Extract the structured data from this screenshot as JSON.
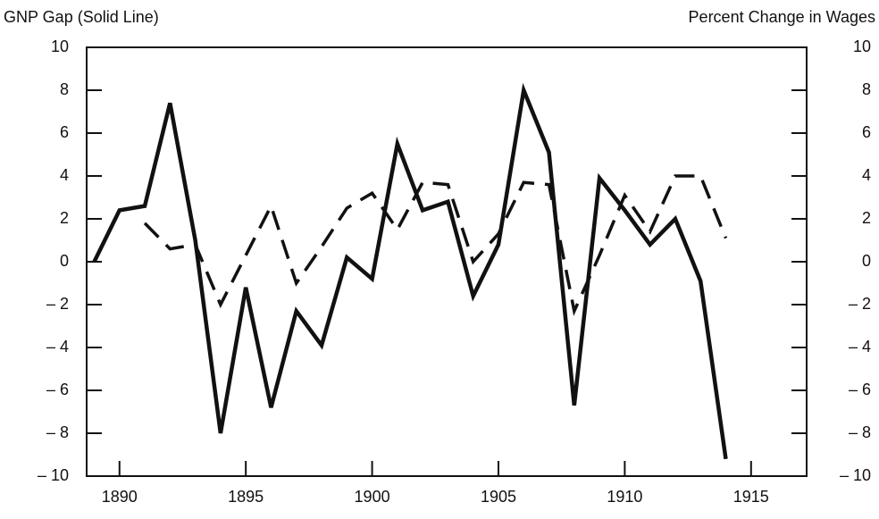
{
  "chart_data": {
    "type": "line",
    "y_label": "GNP Gap (Solid Line)",
    "y2_label": "Percent Change in Wages",
    "x": [
      1889,
      1890,
      1891,
      1892,
      1893,
      1894,
      1895,
      1896,
      1897,
      1898,
      1899,
      1900,
      1901,
      1902,
      1903,
      1904,
      1905,
      1906,
      1907,
      1908,
      1909,
      1910,
      1911,
      1912,
      1913,
      1914
    ],
    "series": [
      {
        "color": "#111111",
        "dash": "solid",
        "values": [
          0,
          2.4,
          2.6,
          7.4,
          1.0,
          -8.0,
          -1.2,
          -6.8,
          -2.3,
          -3.9,
          0.2,
          -0.8,
          5.5,
          2.4,
          2.8,
          -1.6,
          0.8,
          8.0,
          5.1,
          -6.7,
          3.9,
          2.4,
          0.8,
          2.0,
          -0.9,
          -9.2
        ]
      },
      {
        "color": "#111111",
        "dash": "dashed",
        "axis": "y2",
        "values": [
          null,
          null,
          1.8,
          0.6,
          0.8,
          -2.0,
          0.3,
          2.6,
          -1.0,
          0.7,
          2.5,
          3.2,
          1.5,
          3.7,
          3.6,
          0.0,
          1.3,
          3.7,
          3.6,
          -2.3,
          0.3,
          3.1,
          1.4,
          4.0,
          4.0,
          1.1
        ]
      }
    ],
    "xlim": [
      1888.7,
      1917.2
    ],
    "xticks": [
      1890,
      1895,
      1900,
      1905,
      1910,
      1915
    ],
    "ylim": [
      -10,
      10
    ],
    "yticks": [
      {
        "value": -10,
        "label": "– 10"
      },
      {
        "value": -8,
        "label": "– 8"
      },
      {
        "value": -6,
        "label": "– 6"
      },
      {
        "value": -4,
        "label": "– 4"
      },
      {
        "value": -2,
        "label": "– 2"
      },
      0,
      2,
      4,
      6,
      8,
      10
    ],
    "y2lim": [
      -10,
      10
    ],
    "y2ticks": [
      {
        "value": -10,
        "label": "– 10"
      },
      {
        "value": -8,
        "label": "– 8"
      },
      {
        "value": -6,
        "label": "– 6"
      },
      {
        "value": -4,
        "label": "– 4"
      },
      {
        "value": -2,
        "label": "– 2"
      },
      0,
      2,
      4,
      6,
      8,
      10
    ]
  }
}
